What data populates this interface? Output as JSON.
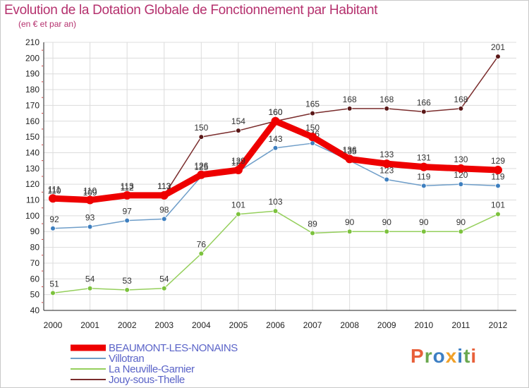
{
  "title": "Evolution de la Dotation Globale de Fonctionnement par Habitant",
  "subtitle": "(en € et par an)",
  "logo": {
    "text": "Proxiti",
    "letters": [
      "P",
      "r",
      "o",
      "x",
      "i",
      "t",
      "i"
    ],
    "colors": [
      "#e8603a",
      "#6aa84f",
      "#3d7fc4",
      "#f1a129",
      "#3d7fc4",
      "#6aa84f",
      "#e8603a"
    ]
  },
  "chart_data": {
    "type": "line",
    "categories": [
      "2000",
      "2001",
      "2002",
      "2003",
      "2004",
      "2005",
      "2006",
      "2007",
      "2008",
      "2009",
      "2010",
      "2011",
      "2012"
    ],
    "ylim": [
      40,
      210
    ],
    "yticks": [
      40,
      50,
      60,
      70,
      80,
      90,
      100,
      110,
      120,
      130,
      140,
      150,
      160,
      170,
      180,
      190,
      200,
      210
    ],
    "grid": true,
    "legend_position": "bottom-left",
    "series": [
      {
        "name": "La Neuville-Garnier",
        "color": "#95cf5c",
        "point": "#7cc23d",
        "values": [
          51,
          54,
          53,
          54,
          76,
          101,
          103,
          89,
          90,
          90,
          90,
          90,
          101
        ]
      },
      {
        "name": "Villotran",
        "color": "#6f9ec9",
        "point": "#3e7fbf",
        "values": [
          92,
          93,
          97,
          98,
          125,
          128,
          143,
          146,
          135,
          123,
          119,
          120,
          119
        ]
      },
      {
        "name": "Jouy-sous-Thelle",
        "color": "#7a2c2c",
        "point": "#5a1818",
        "values": [
          110,
          109,
          112,
          113,
          150,
          154,
          160,
          165,
          168,
          168,
          166,
          168,
          201
        ]
      },
      {
        "name": "BEAUMONT-LES-NONAINS",
        "color": "#ee0000",
        "point": "#ee0000",
        "values": [
          111,
          110,
          113,
          113,
          126,
          129,
          160,
          150,
          136,
          133,
          131,
          130,
          129
        ],
        "bold": true
      }
    ],
    "legend_order": [
      "BEAUMONT-LES-NONAINS",
      "Villotran",
      "La Neuville-Garnier",
      "Jouy-sous-Thelle"
    ]
  }
}
